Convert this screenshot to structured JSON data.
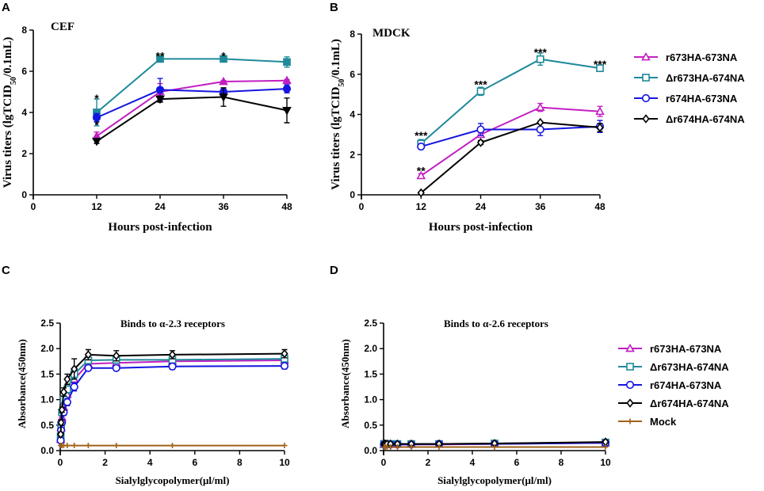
{
  "chart_data": [
    {
      "panel": "A",
      "type": "line",
      "title": "CEF",
      "xlabel": "Hours post-infection",
      "ylabel_parts": [
        "Virus titers (lgTCID",
        "50",
        "/0.1mL)"
      ],
      "xlim": [
        0,
        48
      ],
      "ylim": [
        0,
        8
      ],
      "xticks": [
        0,
        12,
        24,
        36,
        48
      ],
      "yticks": [
        0,
        2,
        4,
        6,
        8
      ],
      "x": [
        12,
        24,
        36,
        48
      ],
      "series": [
        {
          "name": "r673HA-673NA",
          "color": "#c21fc2",
          "marker": "triangle-filled",
          "values": [
            2.85,
            5.0,
            5.5,
            5.55
          ],
          "err": [
            0.2,
            0.4,
            0.05,
            0.05
          ]
        },
        {
          "name": "Δr673HA-674NA",
          "color": "#1f8a9a",
          "marker": "square-filled",
          "values": [
            4.0,
            6.6,
            6.6,
            6.45
          ],
          "err": [
            0.65,
            0.05,
            0.05,
            0.25
          ]
        },
        {
          "name": "r674HA-673NA",
          "color": "#1515e0",
          "marker": "circle-filled",
          "values": [
            3.75,
            5.1,
            5.0,
            5.15
          ],
          "err": [
            0.2,
            0.55,
            0.15,
            0.2
          ]
        },
        {
          "name": "Δr674HA-674NA",
          "color": "#000000",
          "marker": "triangle-down-filled",
          "values": [
            2.6,
            4.65,
            4.75,
            4.1
          ],
          "err": [
            0.1,
            0.15,
            0.45,
            0.6
          ]
        }
      ],
      "annotations": [
        {
          "text": "*",
          "x": 12,
          "y": 4.7
        },
        {
          "text": "*",
          "x": 12,
          "y": 3.4
        },
        {
          "text": "**",
          "x": 24,
          "y": 6.75
        },
        {
          "text": "*",
          "x": 36,
          "y": 6.75
        }
      ]
    },
    {
      "panel": "B",
      "type": "line",
      "title": "MDCK",
      "xlabel": "Hours post-infection",
      "ylabel_parts": [
        "Virus titers (lgTCID",
        "50",
        "/0.1mL)"
      ],
      "xlim": [
        0,
        48
      ],
      "ylim": [
        0,
        8
      ],
      "xticks": [
        0,
        12,
        24,
        36,
        48
      ],
      "yticks": [
        0,
        2,
        4,
        6,
        8
      ],
      "x": [
        12,
        24,
        36,
        48
      ],
      "series": [
        {
          "name": "r673HA-673NA",
          "color": "#c21fc2",
          "marker": "triangle-open",
          "values": [
            0.95,
            3.0,
            4.35,
            4.15
          ],
          "err": [
            0.1,
            0.1,
            0.2,
            0.25
          ]
        },
        {
          "name": "Δr673HA-674NA",
          "color": "#1f8a9a",
          "marker": "square-open",
          "values": [
            2.55,
            5.15,
            6.75,
            6.3
          ],
          "err": [
            0.2,
            0.2,
            0.3,
            0.1
          ]
        },
        {
          "name": "r674HA-673NA",
          "color": "#1515e0",
          "marker": "circle-open",
          "values": [
            2.4,
            3.25,
            3.25,
            3.4
          ],
          "err": [
            0.1,
            0.3,
            0.3,
            0.3
          ]
        },
        {
          "name": "Δr674HA-674NA",
          "color": "#000000",
          "marker": "diamond-open",
          "values": [
            0.1,
            2.6,
            3.6,
            3.35
          ],
          "err": [
            0.0,
            0.1,
            0.05,
            0.2
          ]
        }
      ],
      "annotations": [
        {
          "text": "***",
          "x": 12,
          "y": 2.95
        },
        {
          "text": "**",
          "x": 12,
          "y": 1.2
        },
        {
          "text": "***",
          "x": 24,
          "y": 5.5
        },
        {
          "text": "***",
          "x": 36,
          "y": 7.1
        },
        {
          "text": "***",
          "x": 48,
          "y": 6.5
        }
      ]
    },
    {
      "panel": "C",
      "type": "line",
      "title": "Binds to α-2.3 receptors",
      "xlabel": "Sialylglycopolymer(μl/ml)",
      "ylabel": "Absorbance(450nm)",
      "xlim": [
        0,
        10
      ],
      "ylim": [
        0,
        2.5
      ],
      "xticks": [
        0,
        2,
        4,
        6,
        8,
        10
      ],
      "yticks": [
        0.0,
        0.5,
        1.0,
        1.5,
        2.0,
        2.5
      ],
      "x": [
        0.0195,
        0.039,
        0.078,
        0.156,
        0.3125,
        0.625,
        1.25,
        2.5,
        5,
        10
      ],
      "series": [
        {
          "name": "r673HA-673NA",
          "color": "#c21fc2",
          "marker": "triangle-open",
          "values": [
            0.22,
            0.45,
            0.65,
            0.85,
            1.1,
            1.4,
            1.7,
            1.72,
            1.75,
            1.77
          ],
          "err": [
            0.04,
            0.05,
            0.05,
            0.06,
            0.07,
            0.08,
            0.05,
            0.05,
            0.05,
            0.05
          ]
        },
        {
          "name": "Δr673HA-674NA",
          "color": "#1f8a9a",
          "marker": "square-open",
          "values": [
            0.28,
            0.5,
            0.75,
            1.0,
            1.2,
            1.5,
            1.77,
            1.78,
            1.78,
            1.8
          ],
          "err": [
            0.04,
            0.05,
            0.05,
            0.06,
            0.07,
            0.08,
            0.06,
            0.06,
            0.06,
            0.06
          ]
        },
        {
          "name": "r674HA-673NA",
          "color": "#1515e0",
          "marker": "circle-open",
          "values": [
            0.2,
            0.4,
            0.55,
            0.75,
            0.95,
            1.25,
            1.62,
            1.62,
            1.65,
            1.66
          ],
          "err": [
            0.04,
            0.05,
            0.05,
            0.06,
            0.07,
            0.08,
            0.05,
            0.05,
            0.06,
            0.06
          ]
        },
        {
          "name": "Δr674HA-674NA",
          "color": "#000000",
          "marker": "diamond-open",
          "values": [
            0.32,
            0.55,
            0.8,
            1.15,
            1.4,
            1.6,
            1.88,
            1.86,
            1.88,
            1.9
          ],
          "err": [
            0.04,
            0.05,
            0.05,
            0.08,
            0.1,
            0.2,
            0.1,
            0.1,
            0.08,
            0.08
          ]
        },
        {
          "name": "Mock",
          "color": "#a0621a",
          "marker": "plus",
          "values": [
            0.1,
            0.1,
            0.1,
            0.1,
            0.1,
            0.1,
            0.1,
            0.1,
            0.1,
            0.1
          ],
          "err": [
            0,
            0,
            0,
            0,
            0,
            0,
            0,
            0,
            0,
            0
          ]
        }
      ]
    },
    {
      "panel": "D",
      "type": "line",
      "title": "Binds to α-2.6 receptors",
      "xlabel": "Sialylglycopolymer(μl/ml)",
      "ylabel": "Absorbance(450nm)",
      "xlim": [
        0,
        10
      ],
      "ylim": [
        0,
        2.5
      ],
      "xticks": [
        0,
        2,
        4,
        6,
        8,
        10
      ],
      "yticks": [
        0.0,
        0.5,
        1.0,
        1.5,
        2.0,
        2.5
      ],
      "x": [
        0.0195,
        0.039,
        0.078,
        0.156,
        0.3125,
        0.625,
        1.25,
        2.5,
        5,
        10
      ],
      "series": [
        {
          "name": "r673HA-673NA",
          "color": "#c21fc2",
          "marker": "triangle-open",
          "values": [
            0.12,
            0.12,
            0.12,
            0.12,
            0.12,
            0.12,
            0.12,
            0.12,
            0.13,
            0.15
          ],
          "err": [
            0.01,
            0.01,
            0.01,
            0.01,
            0.01,
            0.01,
            0.01,
            0.01,
            0.01,
            0.01
          ]
        },
        {
          "name": "Δr673HA-674NA",
          "color": "#1f8a9a",
          "marker": "square-open",
          "values": [
            0.13,
            0.13,
            0.13,
            0.13,
            0.13,
            0.13,
            0.13,
            0.13,
            0.14,
            0.16
          ],
          "err": [
            0.01,
            0.01,
            0.01,
            0.01,
            0.01,
            0.01,
            0.01,
            0.01,
            0.01,
            0.01
          ]
        },
        {
          "name": "r674HA-673NA",
          "color": "#1515e0",
          "marker": "circle-open",
          "values": [
            0.12,
            0.12,
            0.12,
            0.12,
            0.12,
            0.12,
            0.12,
            0.13,
            0.13,
            0.15
          ],
          "err": [
            0.01,
            0.01,
            0.01,
            0.01,
            0.01,
            0.01,
            0.01,
            0.01,
            0.01,
            0.01
          ]
        },
        {
          "name": "Δr674HA-674NA",
          "color": "#000000",
          "marker": "diamond-open",
          "values": [
            0.13,
            0.13,
            0.13,
            0.13,
            0.13,
            0.13,
            0.13,
            0.13,
            0.14,
            0.17
          ],
          "err": [
            0.01,
            0.01,
            0.01,
            0.01,
            0.01,
            0.01,
            0.01,
            0.01,
            0.01,
            0.01
          ]
        },
        {
          "name": "Mock",
          "color": "#a0621a",
          "marker": "plus",
          "values": [
            0.07,
            0.07,
            0.07,
            0.07,
            0.07,
            0.07,
            0.07,
            0.07,
            0.07,
            0.07
          ],
          "err": [
            0,
            0,
            0,
            0,
            0,
            0,
            0,
            0,
            0,
            0
          ]
        }
      ]
    }
  ],
  "legend_top": [
    {
      "label": "r673HA-673NA",
      "color": "#c21fc2",
      "marker": "triangle-open"
    },
    {
      "label": "Δr673HA-674NA",
      "color": "#1f8a9a",
      "marker": "square-open"
    },
    {
      "label": "r674HA-673NA",
      "color": "#1515e0",
      "marker": "circle-open"
    },
    {
      "label": "Δr674HA-674NA",
      "color": "#000000",
      "marker": "diamond-open"
    }
  ],
  "legend_bottom": [
    {
      "label": "r673HA-673NA",
      "color": "#c21fc2",
      "marker": "triangle-open"
    },
    {
      "label": "Δr673HA-674NA",
      "color": "#1f8a9a",
      "marker": "square-open"
    },
    {
      "label": "r674HA-673NA",
      "color": "#1515e0",
      "marker": "circle-open"
    },
    {
      "label": "Δr674HA-674NA",
      "color": "#000000",
      "marker": "diamond-open"
    },
    {
      "label": "Mock",
      "color": "#a0621a",
      "marker": "plus"
    }
  ]
}
